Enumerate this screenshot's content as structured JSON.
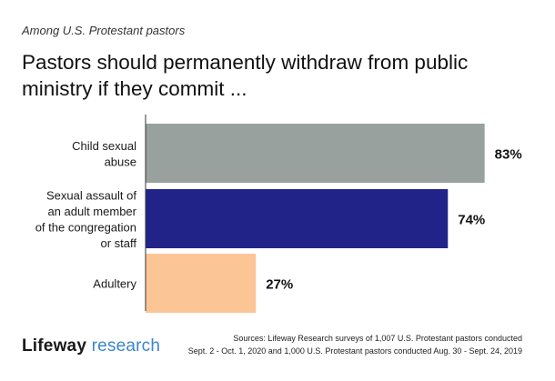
{
  "header": {
    "subtitle": "Among U.S. Protestant pastors",
    "title": "Pastors should permanently withdraw from public ministry if they commit ..."
  },
  "chart_data": {
    "type": "bar",
    "orientation": "horizontal",
    "categories": [
      [
        "Child sexual",
        "abuse"
      ],
      [
        "Sexual assault of",
        "an adult member",
        "of the congregation",
        "or staff"
      ],
      [
        "Adultery"
      ]
    ],
    "values": [
      83,
      74,
      27
    ],
    "value_labels": [
      "83%",
      "74%",
      "27%"
    ],
    "bar_colors": [
      "#98a19d",
      "#222389",
      "#fcc596"
    ],
    "xlim": [
      0,
      100
    ],
    "xlabel": "",
    "ylabel": "",
    "grid": false
  },
  "footer": {
    "logo_part1": "Lifeway",
    "logo_part2": " research",
    "source_line1": "Sources: Lifeway Research surveys of 1,007 U.S. Protestant pastors conducted",
    "source_line2": "Sept. 2 - Oct. 1, 2020 and 1,000 U.S. Protestant pastors conducted Aug. 30 - Sept. 24, 2019"
  }
}
